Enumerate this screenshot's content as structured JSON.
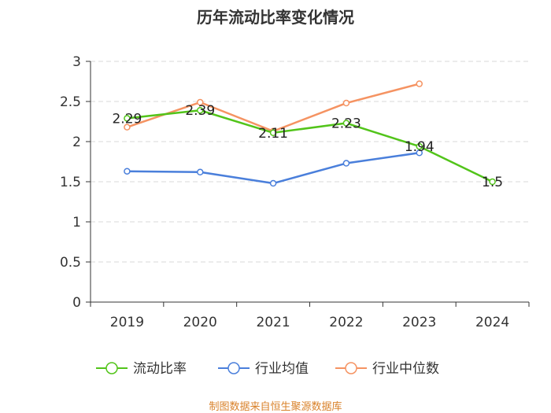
{
  "chart_data": {
    "type": "line",
    "title": "历年流动比率变化情况",
    "categories": [
      "2019",
      "2020",
      "2021",
      "2022",
      "2023",
      "2024"
    ],
    "ylim": [
      0,
      3
    ],
    "yticks": [
      0,
      0.5,
      1,
      1.5,
      2,
      2.5,
      3
    ],
    "ytick_labels": [
      "0",
      "0.5",
      "1",
      "1.5",
      "2",
      "2.5",
      "3"
    ],
    "grid": true,
    "legend_position": "bottom",
    "series": [
      {
        "name": "流动比率",
        "color": "#52c41a",
        "values": [
          2.29,
          2.39,
          2.11,
          2.23,
          1.94,
          1.5
        ],
        "labels": [
          "2.29",
          "2.39",
          "2.11",
          "2.23",
          "1.94",
          "1.5"
        ]
      },
      {
        "name": "行业均值",
        "color": "#4a7fdb",
        "values": [
          1.63,
          1.62,
          1.48,
          1.73,
          1.86,
          null
        ]
      },
      {
        "name": "行业中位数",
        "color": "#f59362",
        "values": [
          2.18,
          2.49,
          2.13,
          2.48,
          2.72,
          null
        ]
      }
    ]
  },
  "source_text": "制图数据来自恒生聚源数据库"
}
